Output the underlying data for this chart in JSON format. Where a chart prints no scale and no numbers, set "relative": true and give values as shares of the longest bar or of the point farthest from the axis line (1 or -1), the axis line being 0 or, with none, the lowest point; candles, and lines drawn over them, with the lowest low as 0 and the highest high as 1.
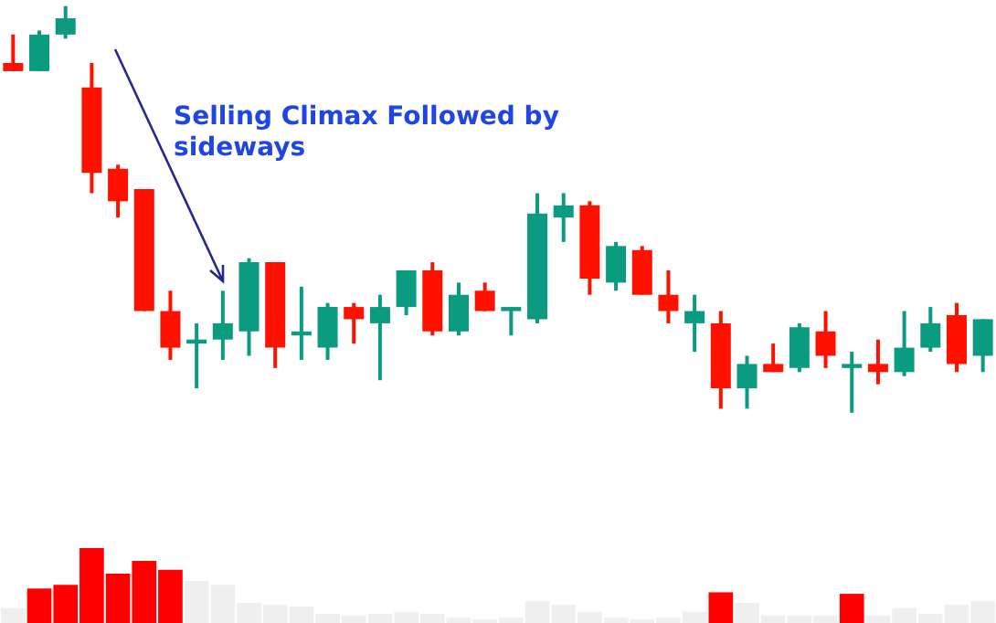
{
  "chart_data": [
    {
      "type": "candlestick",
      "relative": true,
      "categories": [
        null,
        null,
        null,
        null,
        null,
        null,
        null,
        null,
        null,
        null,
        null,
        null,
        null,
        null,
        null,
        null,
        null,
        null,
        null,
        null,
        null,
        null,
        null,
        null,
        null,
        null,
        null,
        null,
        null,
        null,
        null,
        null,
        null,
        null,
        null,
        null,
        null,
        null
      ],
      "annotations": [
        "Selling Climax Followed by sideways"
      ],
      "ohlc": [
        [
          0.86,
          0.93,
          0.84,
          0.84
        ],
        [
          0.84,
          0.94,
          0.84,
          0.93
        ],
        [
          0.93,
          1,
          0.92,
          0.97
        ],
        [
          0.8,
          0.86,
          0.54,
          0.59
        ],
        [
          0.6,
          0.61,
          0.48,
          0.52
        ],
        [
          0.55,
          0.55,
          0.25,
          0.25
        ],
        [
          0.25,
          0.3,
          0.13,
          0.16
        ],
        [
          0.17,
          0.22,
          0.06,
          0.18
        ],
        [
          0.18,
          0.3,
          0.13,
          0.22
        ],
        [
          0.2,
          0.38,
          0.14,
          0.37
        ],
        [
          0.37,
          0.37,
          0.11,
          0.16
        ],
        [
          0.19,
          0.31,
          0.13,
          0.2
        ],
        [
          0.16,
          0.27,
          0.13,
          0.26
        ],
        [
          0.26,
          0.27,
          0.17,
          0.23
        ],
        [
          0.22,
          0.29,
          0.08,
          0.26
        ],
        [
          0.26,
          0.35,
          0.24,
          0.35
        ],
        [
          0.35,
          0.37,
          0.19,
          0.2
        ],
        [
          0.2,
          0.32,
          0.19,
          0.29
        ],
        [
          0.3,
          0.32,
          0.25,
          0.25
        ],
        [
          0.25,
          0.26,
          0.19,
          0.26
        ],
        [
          0.23,
          0.54,
          0.22,
          0.49
        ],
        [
          0.48,
          0.54,
          0.42,
          0.51
        ],
        [
          0.51,
          0.52,
          0.29,
          0.33
        ],
        [
          0.32,
          0.42,
          0.3,
          0.41
        ],
        [
          0.4,
          0.41,
          0.29,
          0.29
        ],
        [
          0.29,
          0.35,
          0.22,
          0.25
        ],
        [
          0.22,
          0.29,
          0.15,
          0.25
        ],
        [
          0.22,
          0.25,
          0.01,
          0.06
        ],
        [
          0.06,
          0.14,
          0.01,
          0.12
        ],
        [
          0.12,
          0.17,
          0.1,
          0.1
        ],
        [
          0.11,
          0.22,
          0.1,
          0.21
        ],
        [
          0.2,
          0.25,
          0.11,
          0.14
        ],
        [
          0.11,
          0.15,
          0,
          0.12
        ],
        [
          0.12,
          0.18,
          0.07,
          0.1
        ],
        [
          0.1,
          0.25,
          0.09,
          0.16
        ],
        [
          0.16,
          0.26,
          0.15,
          0.22
        ],
        [
          0.24,
          0.27,
          0.1,
          0.12
        ],
        [
          0.14,
          0.23,
          0.1,
          0.23
        ]
      ],
      "colors": [
        "#ff1100",
        "#0a9b80",
        "#0a9b80",
        "#ff1100",
        "#ff1100",
        "#ff1100",
        "#ff1100",
        "#0a9b80",
        "#0a9b80",
        "#0a9b80",
        "#ff1100",
        "#0a9b80",
        "#0a9b80",
        "#ff1100",
        "#0a9b80",
        "#0a9b80",
        "#ff1100",
        "#0a9b80",
        "#ff1100",
        "#0a9b80",
        "#0a9b80",
        "#0a9b80",
        "#ff1100",
        "#0a9b80",
        "#ff1100",
        "#ff1100",
        "#0a9b80",
        "#ff1100",
        "#0a9b80",
        "#ff1100",
        "#0a9b80",
        "#ff1100",
        "#0a9b80",
        "#ff1100",
        "#0a9b80",
        "#0a9b80",
        "#ff1100",
        "#0a9b80"
      ]
    },
    {
      "type": "bar",
      "relative": true,
      "categories": [
        null,
        null,
        null,
        null,
        null,
        null,
        null,
        null,
        null,
        null,
        null,
        null,
        null,
        null,
        null,
        null,
        null,
        null,
        null,
        null,
        null,
        null,
        null,
        null,
        null,
        null,
        null,
        null,
        null,
        null,
        null,
        null,
        null,
        null,
        null,
        null,
        null,
        null
      ],
      "values": [
        0.2,
        0.46,
        0.51,
        1,
        0.66,
        0.83,
        0.71,
        0.56,
        0.51,
        0.27,
        0.24,
        0.22,
        0.12,
        0.1,
        0.12,
        0.15,
        0.12,
        0.07,
        0.05,
        0.07,
        0.29,
        0.24,
        0.15,
        0.07,
        0.05,
        0.07,
        0.15,
        0.41,
        0.27,
        0.1,
        0.1,
        0.1,
        0.39,
        0.1,
        0.2,
        0.12,
        0.24,
        0.29
      ],
      "colors": [
        "#efefef",
        "#ff0000",
        "#ff0000",
        "#ff0000",
        "#ff0000",
        "#ff0000",
        "#ff0000",
        "#efefef",
        "#efefef",
        "#efefef",
        "#efefef",
        "#efefef",
        "#efefef",
        "#efefef",
        "#efefef",
        "#efefef",
        "#efefef",
        "#efefef",
        "#efefef",
        "#efefef",
        "#efefef",
        "#efefef",
        "#efefef",
        "#efefef",
        "#efefef",
        "#efefef",
        "#efefef",
        "#ff0000",
        "#efefef",
        "#efefef",
        "#efefef",
        "#efefef",
        "#ff0000",
        "#efefef",
        "#efefef",
        "#efefef",
        "#efefef",
        "#efefef"
      ]
    }
  ]
}
